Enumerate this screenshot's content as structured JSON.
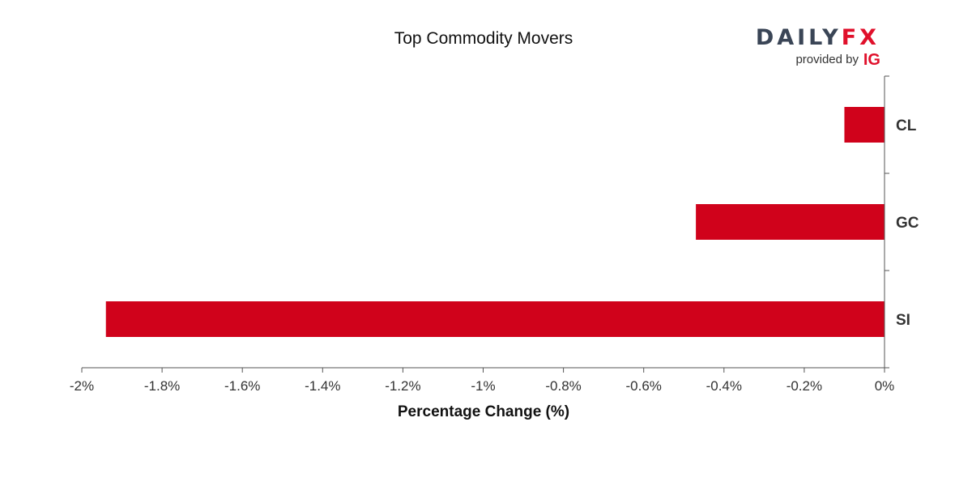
{
  "logo": {
    "brand_part1": "DAILY",
    "brand_part2": "FX",
    "provided_by": "provided by",
    "ig": "IG",
    "brand_color": "#3a4556",
    "accent_color": "#e0102b"
  },
  "chart_data": {
    "type": "bar",
    "orientation": "horizontal",
    "title": "Top Commodity Movers",
    "xlabel": "Percentage Change (%)",
    "ylabel": "",
    "categories": [
      "CL",
      "GC",
      "SI"
    ],
    "values": [
      -0.1,
      -0.47,
      -1.94
    ],
    "xlim": [
      -2,
      0
    ],
    "xticks": [
      -2,
      -1.8,
      -1.6,
      -1.4,
      -1.2,
      -1,
      -0.8,
      -0.6,
      -0.4,
      -0.2,
      0
    ],
    "xtick_labels": [
      "-2%",
      "-1.8%",
      "-1.6%",
      "-1.4%",
      "-1.2%",
      "-1%",
      "-0.8%",
      "-0.6%",
      "-0.4%",
      "-0.2%",
      "0%"
    ],
    "category_axis_position": "right",
    "grid": false,
    "bar_color": "#d0021b"
  }
}
